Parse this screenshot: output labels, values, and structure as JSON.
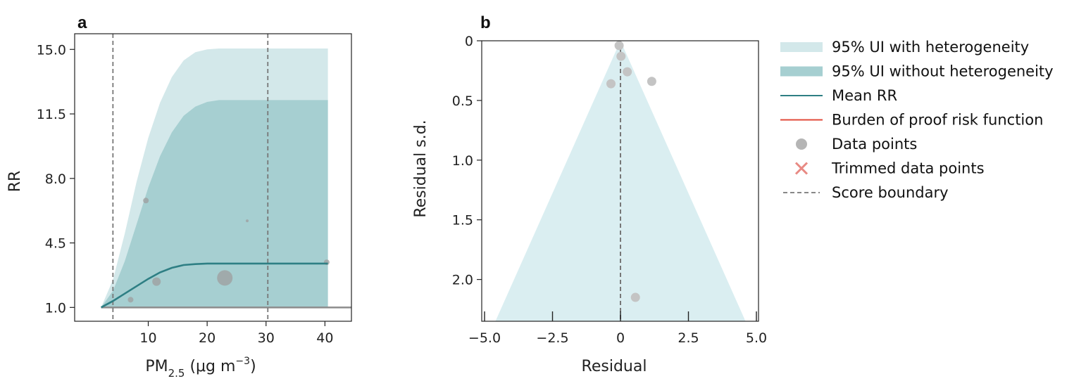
{
  "colors": {
    "ui_with_het": "#d3e8ea",
    "ui_without_het": "#a6cfd1",
    "mean_rr": "#2e7f84",
    "burden": "#e24a3a",
    "data_point": "#9e9e9e",
    "trimmed": "#e88a84",
    "score_boundary": "#777777",
    "funnel": "#daeef1"
  },
  "chart_data": [
    {
      "panel": "a",
      "type": "line",
      "xlabel_main": "PM",
      "xlabel_sub": "2.5",
      "xlabel_unit": " (μg m",
      "xlabel_sup": "−3",
      "xlabel_close": ")",
      "ylabel": "RR",
      "xlim": [
        -2.5,
        44.5
      ],
      "ylim": [
        0.25,
        15.85
      ],
      "xticks": [
        10,
        20,
        30,
        40
      ],
      "xtick_labels": [
        "10",
        "20",
        "30",
        "40"
      ],
      "yticks": [
        1.0,
        4.5,
        8.0,
        11.5,
        15.0
      ],
      "ytick_labels": [
        "1.0",
        "4.5",
        "8.0",
        "11.5",
        "15.0"
      ],
      "score_boundaries_x": [
        4,
        30.3
      ],
      "reference_y": 1.0,
      "x": [
        2,
        4,
        6,
        8,
        10,
        12,
        14,
        16,
        18,
        20,
        22,
        25,
        30,
        35,
        40.5
      ],
      "upper_with_het": [
        1.0,
        2.5,
        5.0,
        7.8,
        10.2,
        12.1,
        13.5,
        14.4,
        14.85,
        15.0,
        15.05,
        15.05,
        15.05,
        15.05,
        15.05
      ],
      "upper_without_het": [
        1.0,
        1.9,
        3.5,
        5.5,
        7.5,
        9.2,
        10.5,
        11.4,
        11.9,
        12.15,
        12.25,
        12.25,
        12.25,
        12.25,
        12.25
      ],
      "lower": [
        1.0,
        1.0,
        1.0,
        1.0,
        1.0,
        1.0,
        1.0,
        1.0,
        1.0,
        1.0,
        1.0,
        1.0,
        1.0,
        1.0,
        1.0
      ],
      "mean_rr": [
        1.0,
        1.35,
        1.75,
        2.15,
        2.55,
        2.9,
        3.15,
        3.3,
        3.35,
        3.38,
        3.38,
        3.38,
        3.38,
        3.38,
        3.38
      ],
      "data_points": [
        {
          "x": 7.0,
          "y": 1.42,
          "size": 4
        },
        {
          "x": 9.6,
          "y": 6.8,
          "size": 4
        },
        {
          "x": 11.4,
          "y": 2.4,
          "size": 6
        },
        {
          "x": 23.0,
          "y": 2.6,
          "size": 11
        },
        {
          "x": 26.8,
          "y": 5.7,
          "size": 2
        },
        {
          "x": 40.3,
          "y": 3.45,
          "size": 4
        }
      ]
    },
    {
      "panel": "b",
      "type": "scatter",
      "xlabel": "Residual",
      "ylabel": "Residual s.d.",
      "xlim": [
        -5.0,
        5.0
      ],
      "ylim": [
        2.35,
        0.0
      ],
      "xticks": [
        -5.0,
        -2.5,
        0,
        2.5,
        5.0
      ],
      "xtick_labels": [
        "−5.0",
        "−2.5",
        "0",
        "2.5",
        "5.0"
      ],
      "yticks": [
        0,
        0.5,
        1.0,
        1.5,
        2.0
      ],
      "ytick_labels": [
        "0",
        "0.5",
        "1.0",
        "1.5",
        "2.0"
      ],
      "funnel_apex": [
        0,
        0.0
      ],
      "funnel_base": [
        [
          -4.6,
          2.35
        ],
        [
          4.6,
          2.35
        ]
      ],
      "score_boundary_x": 0,
      "data_points": [
        {
          "x": -0.05,
          "y": 0.04
        },
        {
          "x": 0.02,
          "y": 0.13
        },
        {
          "x": 0.25,
          "y": 0.26
        },
        {
          "x": -0.35,
          "y": 0.36
        },
        {
          "x": 1.15,
          "y": 0.34
        },
        {
          "x": 0.55,
          "y": 2.15
        }
      ]
    }
  ],
  "legend": [
    {
      "label": "95% UI with heterogeneity",
      "kind": "band-light"
    },
    {
      "label": "95% UI without heterogeneity",
      "kind": "band-dark"
    },
    {
      "label": "Mean RR",
      "kind": "line-teal"
    },
    {
      "label": "Burden of proof risk function",
      "kind": "line-red"
    },
    {
      "label": "Data points",
      "kind": "dot"
    },
    {
      "label": "Trimmed data points",
      "kind": "cross"
    },
    {
      "label": "Score boundary",
      "kind": "dashed"
    }
  ]
}
